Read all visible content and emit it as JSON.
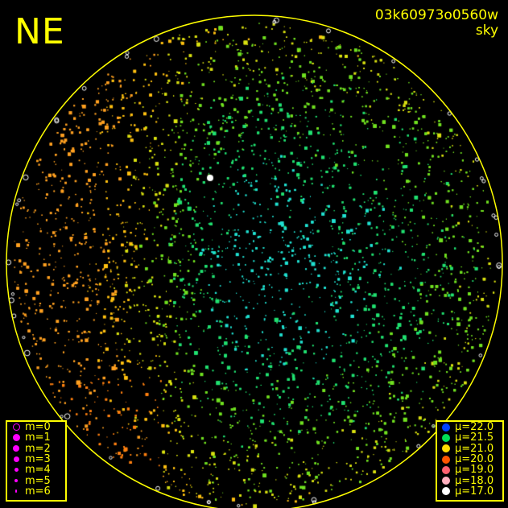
{
  "header": {
    "direction": "NE",
    "frame_id": "03k60973o0560w",
    "subtitle": "sky"
  },
  "magnitude_legend": [
    {
      "label": "m=0",
      "style": "ring"
    },
    {
      "label": "m=1"
    },
    {
      "label": "m=2"
    },
    {
      "label": "m=3"
    },
    {
      "label": "m=4"
    },
    {
      "label": "m=5"
    },
    {
      "label": "m=6"
    }
  ],
  "brightness_legend": [
    {
      "label": "μ=22.0",
      "color": "#0040ff"
    },
    {
      "label": "μ=21.5",
      "color": "#00dd55"
    },
    {
      "label": "μ=21.0",
      "color": "#ffdd00"
    },
    {
      "label": "μ=20.0",
      "color": "#ff5500"
    },
    {
      "label": "μ=19.0",
      "color": "#ff6070"
    },
    {
      "label": "μ=18.0",
      "color": "#ffb0c0"
    },
    {
      "label": "μ=17.0",
      "color": "#ffffff"
    }
  ],
  "colors": {
    "frame": "#ffff00",
    "magnitude_marker": "#ff00ff",
    "background": "#000000"
  }
}
